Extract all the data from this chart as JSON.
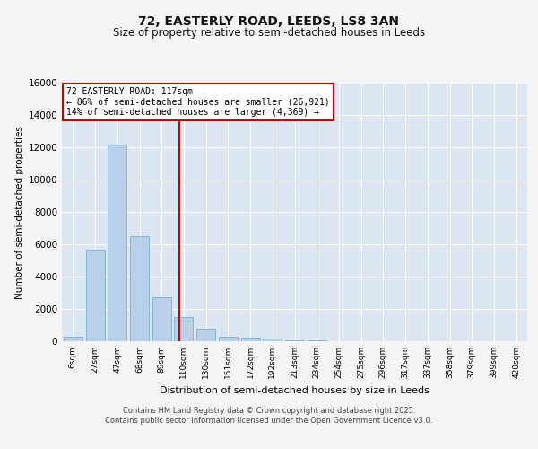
{
  "title": "72, EASTERLY ROAD, LEEDS, LS8 3AN",
  "subtitle": "Size of property relative to semi-detached houses in Leeds",
  "xlabel": "Distribution of semi-detached houses by size in Leeds",
  "ylabel": "Number of semi-detached properties",
  "categories": [
    "6sqm",
    "27sqm",
    "47sqm",
    "68sqm",
    "89sqm",
    "110sqm",
    "130sqm",
    "151sqm",
    "172sqm",
    "192sqm",
    "213sqm",
    "234sqm",
    "254sqm",
    "275sqm",
    "296sqm",
    "317sqm",
    "337sqm",
    "358sqm",
    "379sqm",
    "399sqm",
    "420sqm"
  ],
  "values": [
    300,
    5700,
    12200,
    6500,
    2700,
    1500,
    800,
    300,
    200,
    150,
    80,
    30,
    10,
    5,
    2,
    0,
    0,
    0,
    0,
    0,
    0
  ],
  "bar_color": "#b8d0e8",
  "bar_edge_color": "#7aafd4",
  "vline_index": 4.82,
  "vline_color": "#cc0000",
  "annotation_title": "72 EASTERLY ROAD: 117sqm",
  "annotation_line1": "← 86% of semi-detached houses are smaller (26,921)",
  "annotation_line2": "14% of semi-detached houses are larger (4,369) →",
  "annotation_box_edge": "#cc0000",
  "ylim_max": 16000,
  "ytick_step": 2000,
  "fig_bg": "#f5f5f5",
  "plot_bg": "#dce6f0",
  "grid_color": "#ffffff",
  "footer_line1": "Contains HM Land Registry data © Crown copyright and database right 2025.",
  "footer_line2": "Contains public sector information licensed under the Open Government Licence v3.0."
}
